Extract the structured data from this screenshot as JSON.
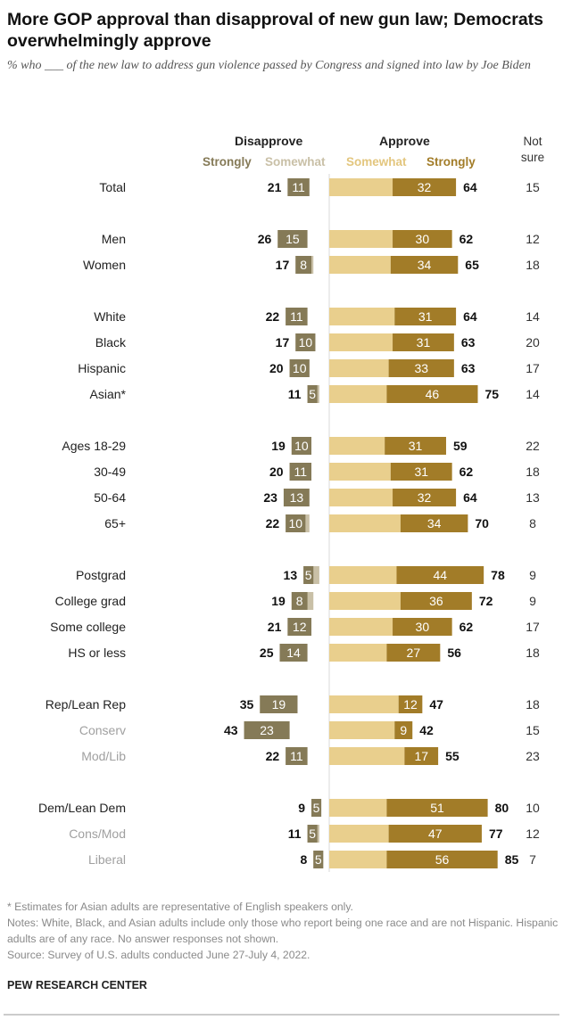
{
  "title": "More GOP approval than disapproval of new gun law; Democrats overwhelmingly approve",
  "subtitle": "% who ___ of the new law to address gun violence passed by Congress and signed into law by Joe Biden",
  "chart_data": {
    "type": "bar",
    "orientation": "diverging-stacked-horizontal",
    "headers": {
      "disapprove": "Disapprove",
      "approve": "Approve",
      "disapprove_strongly": "Strongly",
      "disapprove_somewhat": "Somewhat",
      "approve_somewhat": "Somewhat",
      "approve_strongly": "Strongly",
      "not_sure": "Not sure"
    },
    "colors": {
      "disapprove_strongly": "#857a57",
      "disapprove_somewhat": "#c9c0a7",
      "approve_somewhat": "#e9cf8d",
      "approve_strongly": "#a27c28",
      "muted_label": "#a0a0a0"
    },
    "rows": [
      {
        "label": "Total",
        "group": 0,
        "disapprove_total": 21,
        "disapprove_strongly": 11,
        "approve_strongly": 32,
        "approve_total": 64,
        "not_sure": 15
      },
      {
        "label": "Men",
        "group": 1,
        "disapprove_total": 26,
        "disapprove_strongly": 15,
        "approve_strongly": 30,
        "approve_total": 62,
        "not_sure": 12
      },
      {
        "label": "Women",
        "group": 1,
        "disapprove_total": 17,
        "disapprove_strongly": 8,
        "approve_strongly": 34,
        "approve_total": 65,
        "not_sure": 18
      },
      {
        "label": "White",
        "group": 2,
        "disapprove_total": 22,
        "disapprove_strongly": 11,
        "approve_strongly": 31,
        "approve_total": 64,
        "not_sure": 14
      },
      {
        "label": "Black",
        "group": 2,
        "disapprove_total": 17,
        "disapprove_strongly": 10,
        "approve_strongly": 31,
        "approve_total": 63,
        "not_sure": 20
      },
      {
        "label": "Hispanic",
        "group": 2,
        "disapprove_total": 20,
        "disapprove_strongly": 10,
        "approve_strongly": 33,
        "approve_total": 63,
        "not_sure": 17
      },
      {
        "label": "Asian*",
        "group": 2,
        "disapprove_total": 11,
        "disapprove_strongly": 5,
        "approve_strongly": 46,
        "approve_total": 75,
        "not_sure": 14
      },
      {
        "label": "Ages 18-29",
        "group": 3,
        "disapprove_total": 19,
        "disapprove_strongly": 10,
        "approve_strongly": 31,
        "approve_total": 59,
        "not_sure": 22
      },
      {
        "label": "30-49",
        "group": 3,
        "disapprove_total": 20,
        "disapprove_strongly": 11,
        "approve_strongly": 31,
        "approve_total": 62,
        "not_sure": 18
      },
      {
        "label": "50-64",
        "group": 3,
        "disapprove_total": 23,
        "disapprove_strongly": 13,
        "approve_strongly": 32,
        "approve_total": 64,
        "not_sure": 13
      },
      {
        "label": "65+",
        "group": 3,
        "disapprove_total": 22,
        "disapprove_strongly": 10,
        "approve_strongly": 34,
        "approve_total": 70,
        "not_sure": 8
      },
      {
        "label": "Postgrad",
        "group": 4,
        "disapprove_total": 13,
        "disapprove_strongly": 5,
        "approve_strongly": 44,
        "approve_total": 78,
        "not_sure": 9
      },
      {
        "label": "College grad",
        "group": 4,
        "disapprove_total": 19,
        "disapprove_strongly": 8,
        "approve_strongly": 36,
        "approve_total": 72,
        "not_sure": 9
      },
      {
        "label": "Some college",
        "group": 4,
        "disapprove_total": 21,
        "disapprove_strongly": 12,
        "approve_strongly": 30,
        "approve_total": 62,
        "not_sure": 17
      },
      {
        "label": "HS or less",
        "group": 4,
        "disapprove_total": 25,
        "disapprove_strongly": 14,
        "approve_strongly": 27,
        "approve_total": 56,
        "not_sure": 18
      },
      {
        "label": "Rep/Lean Rep",
        "group": 5,
        "disapprove_total": 35,
        "disapprove_strongly": 19,
        "approve_strongly": 12,
        "approve_total": 47,
        "not_sure": 18
      },
      {
        "label": "Conserv",
        "group": 5,
        "muted": true,
        "disapprove_total": 43,
        "disapprove_strongly": 23,
        "approve_strongly": 9,
        "approve_total": 42,
        "not_sure": 15
      },
      {
        "label": "Mod/Lib",
        "group": 5,
        "muted": true,
        "disapprove_total": 22,
        "disapprove_strongly": 11,
        "approve_strongly": 17,
        "approve_total": 55,
        "not_sure": 23
      },
      {
        "label": "Dem/Lean Dem",
        "group": 6,
        "disapprove_total": 9,
        "disapprove_strongly": 5,
        "approve_strongly": 51,
        "approve_total": 80,
        "not_sure": 10
      },
      {
        "label": "Cons/Mod",
        "group": 6,
        "muted": true,
        "disapprove_total": 11,
        "disapprove_strongly": 5,
        "approve_strongly": 47,
        "approve_total": 77,
        "not_sure": 12
      },
      {
        "label": "Liberal",
        "group": 6,
        "muted": true,
        "disapprove_total": 8,
        "disapprove_strongly": 5,
        "approve_strongly": 56,
        "approve_total": 85,
        "not_sure": 7
      }
    ]
  },
  "footnotes": [
    "* Estimates for Asian adults are representative of English speakers only.",
    "Notes: White, Black, and Asian adults include only those who report being one race and are not Hispanic. Hispanic adults are of any race. No answer responses not shown.",
    "Source: Survey of U.S. adults conducted June 27-July 4, 2022."
  ],
  "brand": "PEW RESEARCH CENTER"
}
